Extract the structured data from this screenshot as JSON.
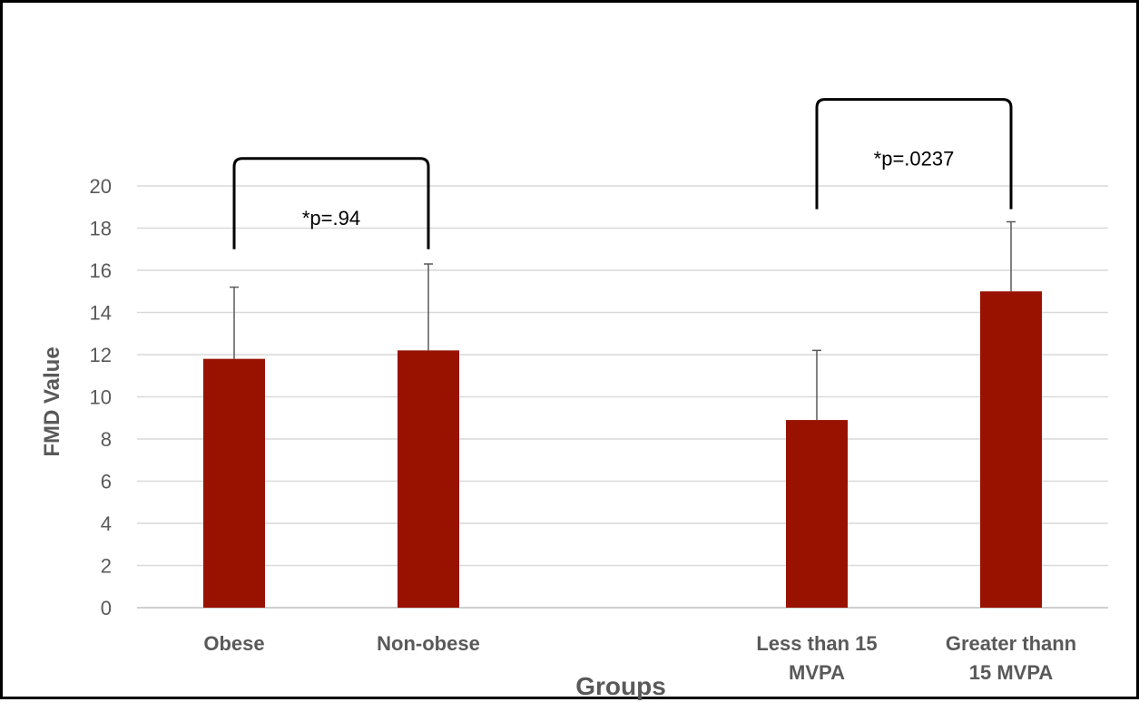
{
  "chart_data": {
    "type": "bar",
    "categories": [
      [
        "Obese"
      ],
      [
        "Non-obese"
      ],
      [
        ""
      ],
      [
        "Less than 15",
        "MVPA"
      ],
      [
        "Greater thann",
        "15 MVPA"
      ]
    ],
    "values": [
      11.8,
      12.2,
      null,
      8.9,
      15.0
    ],
    "error_upper": [
      3.4,
      4.1,
      null,
      3.3,
      3.3
    ],
    "xlabel": "Groups",
    "ylabel": "FMD Value",
    "ylim": [
      0,
      20
    ],
    "yticks": [
      "0",
      "2",
      "4",
      "6",
      "8",
      "10",
      "12",
      "14",
      "16",
      "18",
      "20"
    ],
    "grid": true,
    "legend": "none",
    "bar_color": "#991200",
    "annotations": [
      {
        "text": "*p=.94",
        "from": 0,
        "to": 1,
        "bracket_top": 21.3,
        "bracket_leg_bottom": 17.0
      },
      {
        "text": "*p=.0237",
        "from": 3,
        "to": 4,
        "bracket_top": 24.1,
        "bracket_leg_bottom": 18.9
      }
    ]
  }
}
